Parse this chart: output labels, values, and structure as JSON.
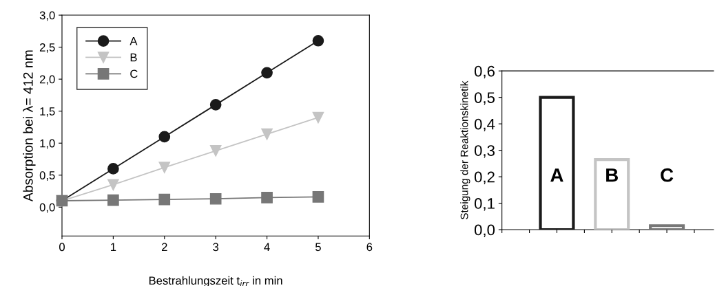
{
  "chart_data": [
    {
      "type": "line",
      "xlabel": "Bestrahlungszeit t$_{irr}$ in min",
      "ylabel": "Absorption bei λ= 412 nm",
      "x": [
        0,
        1,
        2,
        3,
        4,
        5
      ],
      "xlim": [
        0,
        6
      ],
      "xticks": [
        0,
        1,
        2,
        3,
        4,
        5,
        6
      ],
      "ylim": [
        -0.45,
        3.0
      ],
      "yticks": [
        {
          "value": 0,
          "label": "0,0"
        },
        {
          "value": 0.5,
          "label": "0,5"
        },
        {
          "value": 1.0,
          "label": "1,0"
        },
        {
          "value": 1.5,
          "label": "1,5"
        },
        {
          "value": 2.0,
          "label": "2,0"
        },
        {
          "value": 2.5,
          "label": "2,5"
        },
        {
          "value": 3.0,
          "label": "3,0"
        }
      ],
      "legend": "top left",
      "grid": false,
      "line_style": "solid",
      "series": [
        {
          "name": "A",
          "color": "#1a1a1a",
          "marker": "circle",
          "values": [
            0.1,
            0.6,
            1.1,
            1.6,
            2.1,
            2.6
          ]
        },
        {
          "name": "B",
          "color": "#c4c4c4",
          "marker": "triangle",
          "values": [
            0.1,
            0.35,
            0.62,
            0.88,
            1.14,
            1.4
          ]
        },
        {
          "name": "C",
          "color": "#777777",
          "marker": "square",
          "values": [
            0.1,
            0.11,
            0.12,
            0.13,
            0.15,
            0.16
          ]
        }
      ]
    },
    {
      "type": "bar",
      "ylabel": "Steigung der Reaktionskinetik",
      "categories": [
        "A",
        "B",
        "C"
      ],
      "values": [
        0.5,
        0.265,
        0.015
      ],
      "colors": [
        "#1a1a1a",
        "#c4c4c4",
        "#777777"
      ],
      "ylim": [
        0,
        0.6
      ],
      "yticks": [
        {
          "value": 0,
          "label": "0,0"
        },
        {
          "value": 0.1,
          "label": "0,1"
        },
        {
          "value": 0.2,
          "label": "0,2"
        },
        {
          "value": 0.3,
          "label": "0,3"
        },
        {
          "value": 0.4,
          "label": "0,4"
        },
        {
          "value": 0.5,
          "label": "0,5"
        },
        {
          "value": 0.6,
          "label": "0,6"
        }
      ],
      "grid": false
    }
  ]
}
